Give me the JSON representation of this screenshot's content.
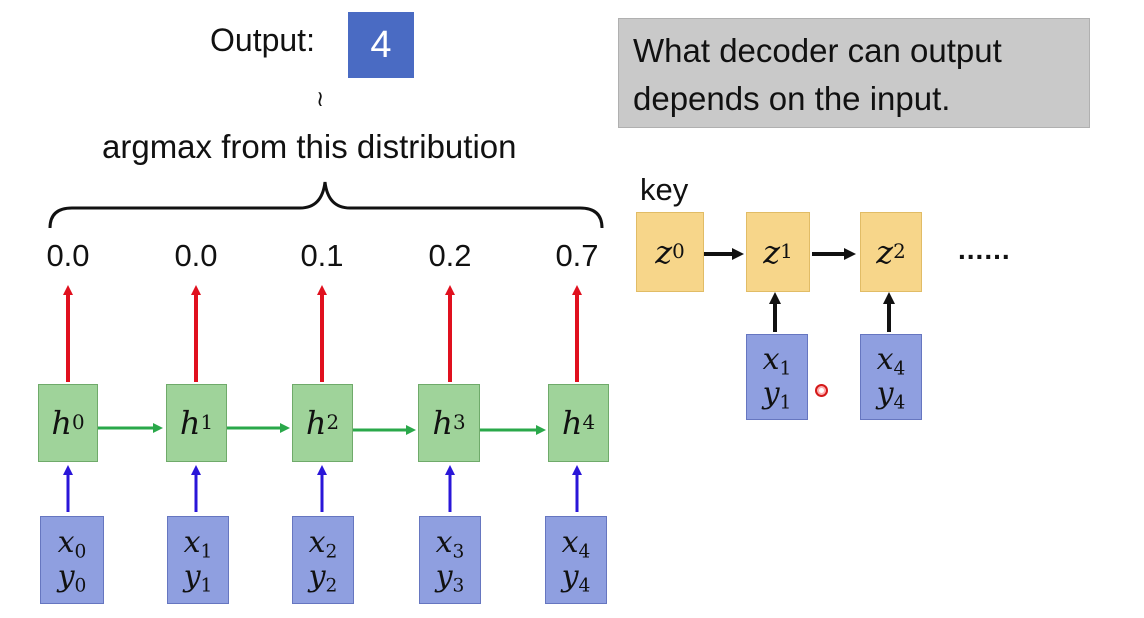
{
  "output": {
    "label": "Output:",
    "value": "4"
  },
  "tilde": "≀",
  "argmax_caption": "argmax from this distribution",
  "distribution": [
    "0.0",
    "0.0",
    "0.1",
    "0.2",
    "0.7"
  ],
  "decoder_nodes": [
    {
      "base": "h",
      "sup": "0"
    },
    {
      "base": "h",
      "sup": "1"
    },
    {
      "base": "h",
      "sup": "2"
    },
    {
      "base": "h",
      "sup": "3"
    },
    {
      "base": "h",
      "sup": "4"
    }
  ],
  "input_nodes": [
    {
      "x": "x",
      "xsub": "0",
      "y": "y",
      "ysub": "0"
    },
    {
      "x": "x",
      "xsub": "1",
      "y": "y",
      "ysub": "1"
    },
    {
      "x": "x",
      "xsub": "2",
      "y": "y",
      "ysub": "2"
    },
    {
      "x": "x",
      "xsub": "3",
      "y": "y",
      "ysub": "3"
    },
    {
      "x": "x",
      "xsub": "4",
      "y": "y",
      "ysub": "4"
    }
  ],
  "callout": {
    "line1": "What decoder can output",
    "line2": "depends on the input."
  },
  "key_label": "key",
  "key_nodes": [
    {
      "base": "z",
      "sup": "0"
    },
    {
      "base": "z",
      "sup": "1"
    },
    {
      "base": "z",
      "sup": "2"
    }
  ],
  "key_inputs": [
    {
      "x": "x",
      "xsub": "1",
      "y": "y",
      "ysub": "1"
    },
    {
      "x": "x",
      "xsub": "4",
      "y": "y",
      "ysub": "4"
    }
  ],
  "ellipsis": "......",
  "colors": {
    "output_box": "#4a6bc3",
    "decoder_node": "#9fd39a",
    "input_node": "#8f9fe0",
    "key_node": "#f7d68a",
    "red_arrow": "#e0101e",
    "green_arrow": "#2aa84a",
    "blue_arrow": "#2a16d8",
    "callout_bg": "#c9c9c9"
  }
}
